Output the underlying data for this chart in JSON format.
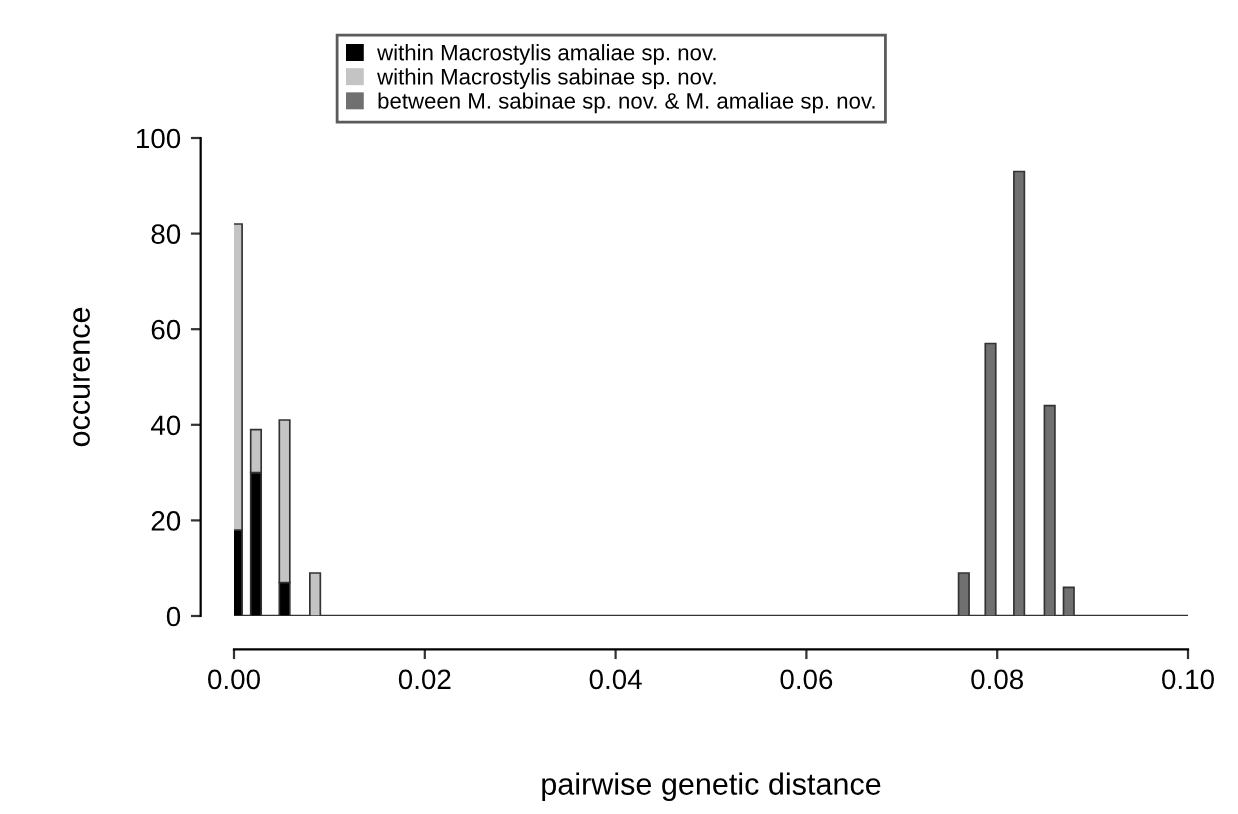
{
  "chart_data": {
    "type": "bar",
    "xlabel": "pairwise genetic distance",
    "ylabel": "occurence",
    "series": [
      {
        "name": "within Macrostylis amaliae sp. nov.",
        "color": "#000000",
        "values": [
          18,
          30,
          7,
          null,
          null,
          null,
          null,
          null,
          null
        ]
      },
      {
        "name": "within Macrostylis sabinae sp. nov.",
        "color": "#c4c4c4",
        "values": [
          64,
          9,
          34,
          9,
          null,
          null,
          null,
          null,
          null
        ]
      },
      {
        "name": "between M. sabinae sp. nov. & M. amaliae sp. nov.",
        "color": "#707070",
        "values": [
          null,
          null,
          null,
          null,
          9,
          57,
          93,
          44,
          6
        ]
      }
    ],
    "x": [
      0.0003,
      0.0023,
      0.0053,
      0.0085,
      0.0765,
      0.0793,
      0.0823,
      0.0855,
      0.0875
    ],
    "xlim": [
      0,
      0.1
    ],
    "xticks": [
      {
        "value": 0,
        "label": "0.00"
      },
      {
        "value": 0.02,
        "label": "0.02"
      },
      {
        "value": 0.04,
        "label": "0.04"
      },
      {
        "value": 0.06,
        "label": "0.06"
      },
      {
        "value": 0.08,
        "label": "0.08"
      },
      {
        "value": 0.1,
        "label": "0.10"
      }
    ],
    "ylim": [
      0,
      100
    ],
    "yticks": [
      0,
      20,
      40,
      60,
      80,
      100
    ],
    "ref_lines": [
      {
        "axis": "y",
        "value": 0
      }
    ],
    "stacked": true,
    "grid": false,
    "legend": "top"
  }
}
